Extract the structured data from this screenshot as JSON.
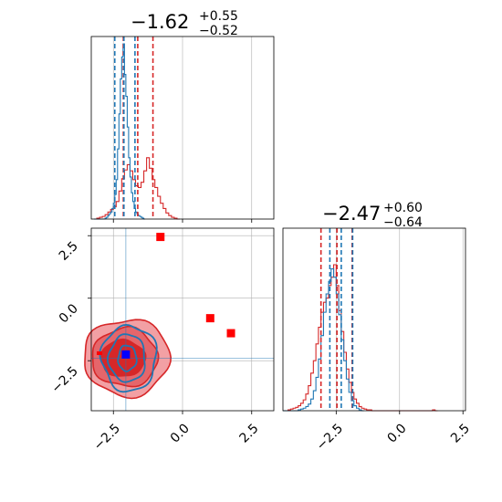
{
  "colors": {
    "red": "#d62728",
    "red_light": "#f2a0a4",
    "red_mid": "#e5666b",
    "blue": "#1f77b4",
    "grid": "#b0b0b0",
    "marker_red": "#ff0000",
    "marker_blue": "#0000ff"
  },
  "chart_data": [
    {
      "type": "histogram",
      "panel": "top-left",
      "title": {
        "main": "−1.62",
        "sup": "+0.55",
        "sub": "−0.52"
      },
      "xlim": [
        -3.3,
        3.3
      ],
      "xticks": [
        -2.5,
        0.0,
        2.5
      ],
      "red_quantiles": [
        -2.14,
        -1.62,
        -1.07
      ],
      "blue_quantiles": [
        -2.45,
        -2.12,
        -1.72
      ],
      "series": [
        {
          "name": "",
          "color": "red",
          "bin_start": -3.2,
          "bin_width": 0.1,
          "counts": [
            0,
            1,
            2,
            3,
            5,
            8,
            11,
            14,
            20,
            32,
            46,
            56,
            62,
            55,
            45,
            38,
            36,
            42,
            55,
            70,
            58,
            45,
            36,
            26,
            18,
            12,
            7,
            4,
            2,
            1,
            0
          ]
        },
        {
          "name": "",
          "color": "blue",
          "bin_start": -3.2,
          "bin_width": 0.05,
          "counts": [
            0,
            0,
            0,
            0,
            0,
            0,
            0,
            0,
            1,
            2,
            4,
            6,
            8,
            12,
            18,
            28,
            45,
            80,
            120,
            160,
            185,
            200,
            165,
            140,
            105,
            70,
            48,
            30,
            20,
            12,
            8,
            6,
            4,
            3,
            2,
            1,
            0
          ]
        }
      ]
    },
    {
      "type": "scatter",
      "panel": "bottom-left",
      "xlim": [
        -3.3,
        3.3
      ],
      "ylim": [
        -4.5,
        2.8
      ],
      "xticks": [
        "−2.5",
        "0.0",
        "2.5"
      ],
      "yticks": [
        "2.5",
        "0.0",
        "−2.5"
      ],
      "ytick_values": [
        2.5,
        0.0,
        -2.5
      ],
      "xtick_values": [
        -2.5,
        0.0,
        2.5
      ],
      "reference_lines": {
        "x": -2.05,
        "y": -2.4
      },
      "red_markers": [
        {
          "x": -0.8,
          "y": 2.45
        },
        {
          "x": 1.0,
          "y": -0.8
        },
        {
          "x": 1.75,
          "y": -1.4
        }
      ],
      "blue_marker": {
        "x": -2.05,
        "y": -2.25
      },
      "red_center": {
        "x": -1.62,
        "y": -2.47
      },
      "blue_center": {
        "x": -2.0,
        "y": -2.4
      }
    },
    {
      "type": "histogram",
      "panel": "bottom-right",
      "title": {
        "main": "−2.47",
        "sup": "+0.60",
        "sub": "−0.64"
      },
      "xlim": [
        -4.6,
        2.6
      ],
      "xticks": [
        "−2.5",
        "0.0",
        "2.5"
      ],
      "xtick_values": [
        -2.5,
        0.0,
        2.5
      ],
      "red_quantiles": [
        -3.1,
        -2.47,
        -1.87
      ],
      "blue_quantiles": [
        -2.75,
        -2.3,
        -1.85
      ],
      "series": [
        {
          "name": "",
          "color": "red",
          "bin_start": -4.6,
          "bin_width": 0.1,
          "counts": [
            0,
            0,
            1,
            2,
            3,
            4,
            6,
            9,
            13,
            20,
            30,
            45,
            60,
            80,
            100,
            118,
            130,
            135,
            150,
            160,
            175,
            150,
            120,
            95,
            70,
            50,
            34,
            22,
            14,
            9,
            5,
            3,
            2,
            1,
            1,
            0,
            0,
            0,
            0,
            0,
            0,
            0,
            0,
            0,
            0,
            0,
            0,
            0,
            0,
            0,
            0,
            0,
            0,
            0,
            0,
            0,
            0,
            0,
            0,
            1,
            0
          ]
        },
        {
          "name": "",
          "color": "blue",
          "bin_start": -4.6,
          "bin_width": 0.1,
          "counts": [
            0,
            0,
            0,
            0,
            0,
            0,
            1,
            2,
            3,
            5,
            8,
            14,
            24,
            40,
            62,
            90,
            118,
            140,
            155,
            170,
            160,
            140,
            115,
            85,
            60,
            38,
            22,
            12,
            6,
            3,
            1,
            0
          ]
        }
      ]
    }
  ]
}
